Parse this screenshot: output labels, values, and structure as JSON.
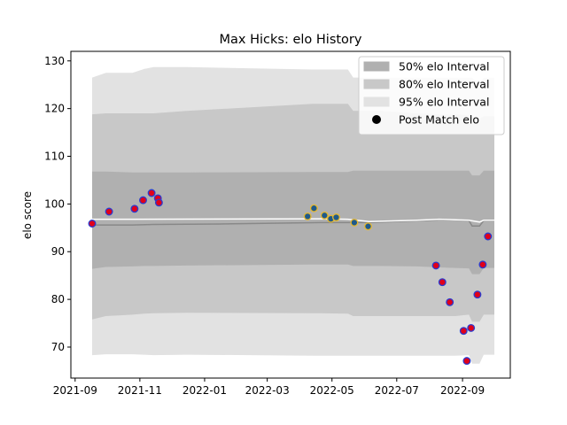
{
  "chart_data": {
    "type": "line",
    "title": "Max Hicks: elo History",
    "xlabel": "",
    "ylabel": "elo score",
    "xlim": [
      "2021-08-28",
      "2022-10-16"
    ],
    "ylim": [
      63.5,
      132
    ],
    "x_ticks": [
      "2021-09",
      "2021-11",
      "2022-01",
      "2022-03",
      "2022-05",
      "2022-07",
      "2022-09"
    ],
    "y_ticks": [
      70,
      80,
      90,
      100,
      110,
      120,
      130
    ],
    "legend_position": "top-right",
    "legend": [
      {
        "label": "50% elo Interval",
        "kind": "patch",
        "color": "#b0b0b0"
      },
      {
        "label": "80% elo Interval",
        "kind": "patch",
        "color": "#c8c8c8"
      },
      {
        "label": "95% elo Interval",
        "kind": "patch",
        "color": "#e2e2e2"
      },
      {
        "label": "Post Match elo",
        "kind": "marker",
        "color": "#000000"
      }
    ],
    "interval_dates": [
      "2021-09-17",
      "2021-09-30",
      "2021-10-25",
      "2021-11-05",
      "2021-11-14",
      "2021-12-15",
      "2022-04-13",
      "2022-04-20",
      "2022-05-16",
      "2022-05-21",
      "2022-06-15",
      "2022-07-20",
      "2022-08-10",
      "2022-08-25",
      "2022-09-07",
      "2022-09-10",
      "2022-09-17",
      "2022-09-21",
      "2022-10-01"
    ],
    "series": [
      {
        "name": "95% elo Interval",
        "color": "#e2e2e2",
        "lower": [
          68.3,
          68.5,
          68.5,
          68.4,
          68.3,
          68.4,
          68.2,
          68.2,
          68.2,
          68.2,
          68.2,
          68.2,
          68.2,
          68.2,
          68.3,
          66.5,
          66.5,
          68.4,
          68.4
        ],
        "upper": [
          126.5,
          127.5,
          127.5,
          128.3,
          128.7,
          128.7,
          128.2,
          128.2,
          128.2,
          126.5,
          126.5,
          126.5,
          126.5,
          126.5,
          126.5,
          126.5,
          125.0,
          126.5,
          126.5
        ]
      },
      {
        "name": "80% elo Interval",
        "color": "#c8c8c8",
        "lower": [
          75.8,
          76.5,
          76.8,
          77.0,
          77.1,
          77.2,
          77.1,
          77.1,
          77.0,
          76.5,
          76.5,
          76.5,
          76.5,
          76.5,
          76.8,
          75.3,
          75.3,
          76.8,
          76.8
        ],
        "upper": [
          118.8,
          119.0,
          119.0,
          119.0,
          119.0,
          119.5,
          121.0,
          121.0,
          121.0,
          119.5,
          119.5,
          119.0,
          118.8,
          118.8,
          118.6,
          118.4,
          117.8,
          118.4,
          118.4
        ]
      },
      {
        "name": "50% elo Interval",
        "color": "#b0b0b0",
        "lower": [
          86.4,
          86.8,
          86.9,
          87.0,
          87.0,
          87.1,
          87.3,
          87.3,
          87.3,
          87.0,
          87.0,
          86.9,
          86.7,
          86.6,
          86.5,
          85.3,
          85.3,
          86.6,
          86.6
        ],
        "upper": [
          106.8,
          106.8,
          106.6,
          106.6,
          106.6,
          106.6,
          106.7,
          106.7,
          106.7,
          107.0,
          107.0,
          107.0,
          107.0,
          107.0,
          107.0,
          106.0,
          106.0,
          107.0,
          107.0
        ]
      }
    ],
    "mean_line": {
      "dates": [
        "2021-09-17",
        "2021-09-30",
        "2021-10-25",
        "2021-11-14",
        "2022-01-15",
        "2022-04-20",
        "2022-05-16",
        "2022-06-05",
        "2022-07-20",
        "2022-08-10",
        "2022-08-25",
        "2022-09-07",
        "2022-09-10",
        "2022-09-17",
        "2022-09-21",
        "2022-10-01"
      ],
      "values": [
        95.6,
        95.6,
        95.6,
        95.7,
        95.8,
        96.1,
        96.1,
        96.1,
        96.5,
        96.7,
        96.7,
        96.5,
        95.4,
        95.4,
        96.5,
        96.5
      ]
    },
    "median_line": {
      "dates": [
        "2021-09-17",
        "2021-10-25",
        "2022-04-20",
        "2022-05-16",
        "2022-06-05",
        "2022-07-20",
        "2022-08-10",
        "2022-09-07",
        "2022-09-17",
        "2022-09-21",
        "2022-10-01"
      ],
      "values": [
        96.8,
        96.8,
        96.9,
        96.8,
        96.3,
        96.6,
        96.8,
        96.6,
        96.2,
        96.6,
        96.6
      ]
    },
    "post_match_elo": [
      {
        "date": "2021-09-17",
        "value": 95.9,
        "group": "active"
      },
      {
        "date": "2021-10-03",
        "value": 98.4,
        "group": "active"
      },
      {
        "date": "2021-10-27",
        "value": 99.0,
        "group": "active"
      },
      {
        "date": "2021-11-04",
        "value": 100.8,
        "group": "active"
      },
      {
        "date": "2021-11-12",
        "value": 102.3,
        "group": "active"
      },
      {
        "date": "2021-11-18",
        "value": 101.2,
        "group": "active"
      },
      {
        "date": "2021-11-19",
        "value": 100.3,
        "group": "active"
      },
      {
        "date": "2022-04-08",
        "value": 97.4,
        "group": "inactive"
      },
      {
        "date": "2022-04-14",
        "value": 99.1,
        "group": "inactive"
      },
      {
        "date": "2022-04-24",
        "value": 97.6,
        "group": "inactive"
      },
      {
        "date": "2022-04-30",
        "value": 96.9,
        "group": "inactive"
      },
      {
        "date": "2022-05-05",
        "value": 97.2,
        "group": "inactive"
      },
      {
        "date": "2022-05-22",
        "value": 96.1,
        "group": "inactive"
      },
      {
        "date": "2022-06-04",
        "value": 95.3,
        "group": "inactive"
      },
      {
        "date": "2022-08-07",
        "value": 87.1,
        "group": "active"
      },
      {
        "date": "2022-08-13",
        "value": 83.6,
        "group": "active"
      },
      {
        "date": "2022-08-20",
        "value": 79.4,
        "group": "active"
      },
      {
        "date": "2022-09-02",
        "value": 73.4,
        "group": "active"
      },
      {
        "date": "2022-09-05",
        "value": 67.1,
        "group": "active"
      },
      {
        "date": "2022-09-09",
        "value": 74.0,
        "group": "active"
      },
      {
        "date": "2022-09-15",
        "value": 81.0,
        "group": "active"
      },
      {
        "date": "2022-09-20",
        "value": 87.3,
        "group": "active"
      },
      {
        "date": "2022-09-25",
        "value": 93.2,
        "group": "active"
      }
    ],
    "marker_colors": {
      "active": {
        "fill": "#e0001a",
        "edge": "#2a3bd0"
      },
      "inactive": {
        "fill": "#1f5a8a",
        "edge": "#e6b830"
      }
    },
    "line_colors": {
      "mean": "#888888",
      "median": "#ffffff"
    }
  }
}
